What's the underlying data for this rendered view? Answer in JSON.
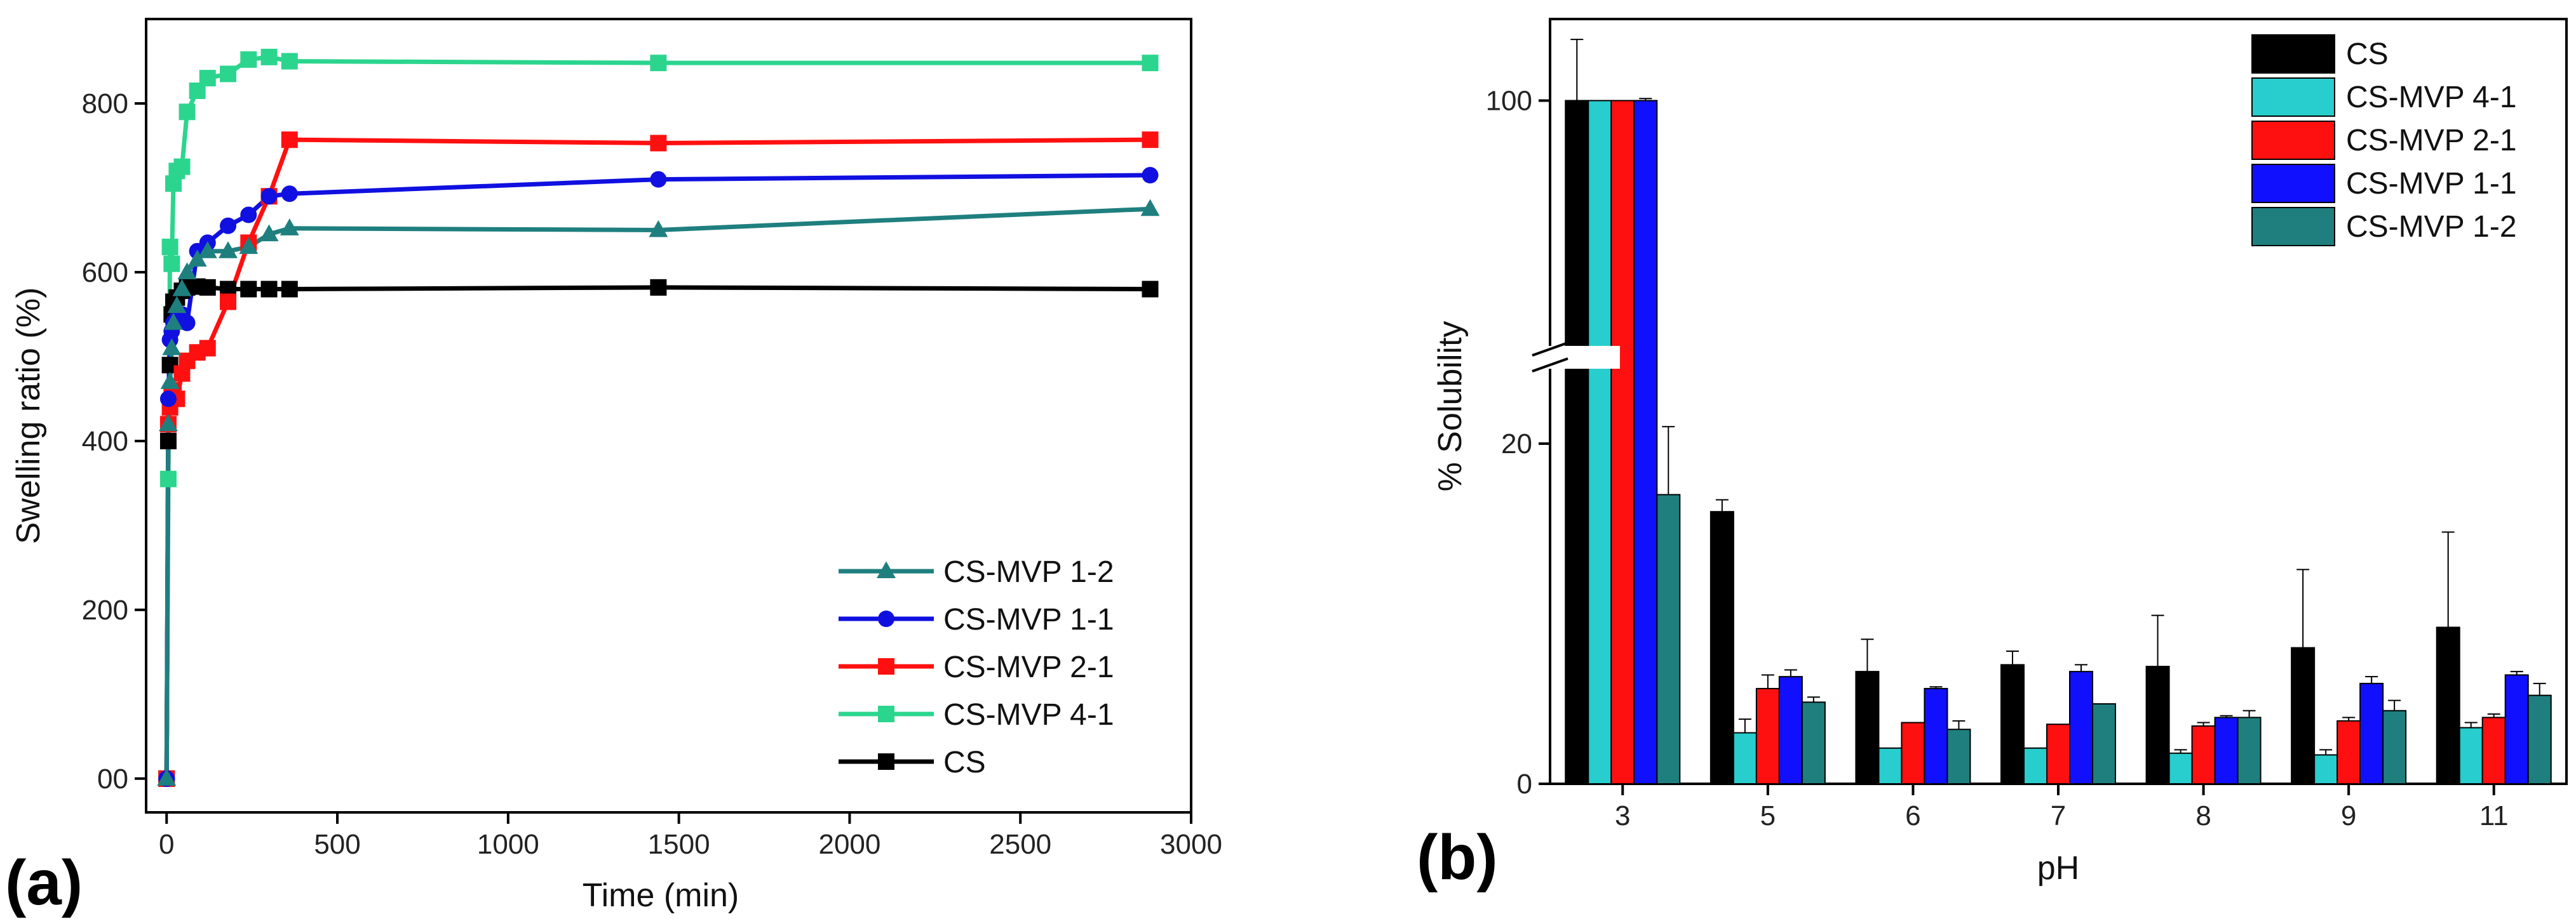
{
  "chart_data": [
    {
      "type": "line",
      "panel_label": "(a)",
      "title": "",
      "xlabel": "Time (min)",
      "ylabel": "Swelling ratio (%)",
      "xlim": [
        -60,
        3000
      ],
      "ylim": [
        -40,
        900
      ],
      "xticks": [
        0,
        500,
        1000,
        1500,
        2000,
        2500,
        3000
      ],
      "yticks": [
        0,
        200,
        400,
        600,
        800
      ],
      "xtick_labels": [
        "0",
        "500",
        "1000",
        "1500",
        "2000",
        "2500",
        "3000"
      ],
      "ytick_labels": [
        "00",
        "200",
        "400",
        "600",
        "800"
      ],
      "legend_position": "bottom-right",
      "series": [
        {
          "name": "CS-MVP 1-2",
          "color": "#1f7f7f",
          "marker": "triangle",
          "x": [
            0,
            5,
            10,
            15,
            20,
            30,
            45,
            60,
            90,
            120,
            180,
            240,
            300,
            360,
            1440,
            2880
          ],
          "y": [
            0,
            420,
            470,
            510,
            540,
            560,
            580,
            600,
            615,
            625,
            625,
            630,
            645,
            652,
            650,
            675
          ]
        },
        {
          "name": "CS-MVP 1-1",
          "color": "#1010e0",
          "marker": "circle",
          "x": [
            0,
            5,
            10,
            15,
            20,
            30,
            45,
            60,
            90,
            120,
            180,
            240,
            300,
            360,
            1440,
            2880
          ],
          "y": [
            0,
            450,
            520,
            530,
            540,
            545,
            550,
            540,
            625,
            635,
            655,
            668,
            690,
            693,
            710,
            715
          ]
        },
        {
          "name": "CS-MVP 2-1",
          "color": "#ff1010",
          "marker": "square",
          "x": [
            0,
            5,
            10,
            15,
            20,
            30,
            45,
            60,
            90,
            120,
            180,
            240,
            300,
            360,
            1440,
            2880
          ],
          "y": [
            0,
            420,
            440,
            455,
            460,
            450,
            480,
            495,
            505,
            510,
            565,
            635,
            690,
            757,
            753,
            757
          ]
        },
        {
          "name": "CS-MVP 4-1",
          "color": "#2cd58e",
          "marker": "square",
          "x": [
            0,
            5,
            10,
            15,
            20,
            30,
            45,
            60,
            90,
            120,
            180,
            240,
            300,
            360,
            1440,
            2880
          ],
          "y": [
            0,
            355,
            630,
            610,
            705,
            720,
            725,
            790,
            815,
            830,
            835,
            852,
            855,
            850,
            848,
            848
          ]
        },
        {
          "name": "CS",
          "color": "#000000",
          "marker": "square",
          "x": [
            0,
            5,
            10,
            15,
            20,
            30,
            45,
            60,
            90,
            120,
            180,
            240,
            300,
            360,
            1440,
            2880
          ],
          "y": [
            0,
            400,
            490,
            550,
            565,
            570,
            578,
            582,
            583,
            582,
            580,
            580,
            580,
            580,
            582,
            580
          ]
        }
      ]
    },
    {
      "type": "bar",
      "panel_label": "(b)",
      "title": "",
      "xlabel": "pH",
      "ylabel": "% Solubility",
      "categories": [
        "3",
        "5",
        "6",
        "7",
        "8",
        "9",
        "11"
      ],
      "ylim": [
        0,
        30
      ],
      "axis_break": {
        "lower": [
          0,
          25
        ],
        "upper": [
          75,
          108
        ]
      },
      "ytick_labels": [
        "0",
        "20",
        "100"
      ],
      "yticks": [
        0,
        20,
        100
      ],
      "legend_position": "top-right",
      "series": [
        {
          "name": "CS",
          "color": "#000000",
          "values": [
            100,
            16,
            6.6,
            7,
            6.9,
            8,
            9.2
          ],
          "errors": [
            6,
            0.7,
            1.9,
            0.8,
            3,
            4.6,
            5.6
          ]
        },
        {
          "name": "CS-MVP 4-1",
          "color": "#28cdcd",
          "values": [
            100,
            3,
            2.1,
            2.1,
            1.8,
            1.7,
            3.3
          ],
          "errors": [
            0,
            0.8,
            0,
            0,
            0.2,
            0.3,
            0.3
          ]
        },
        {
          "name": "CS-MVP 2-1",
          "color": "#ff1010",
          "values": [
            100,
            5.6,
            3.6,
            3.5,
            3.4,
            3.7,
            3.9
          ],
          "errors": [
            0,
            0.8,
            0,
            0,
            0.2,
            0.2,
            0.2
          ]
        },
        {
          "name": "CS-MVP 1-1",
          "color": "#1010ff",
          "values": [
            100,
            6.3,
            5.6,
            6.6,
            3.9,
            5.9,
            6.4
          ],
          "errors": [
            0.2,
            0.4,
            0.1,
            0.4,
            0.1,
            0.4,
            0.2
          ]
        },
        {
          "name": "CS-MVP 1-2",
          "color": "#1f7f7f",
          "values": [
            17,
            4.8,
            3.2,
            4.7,
            3.9,
            4.3,
            5.2
          ],
          "errors": [
            4,
            0.3,
            0.5,
            0,
            0.4,
            0.6,
            0.7
          ]
        }
      ]
    }
  ]
}
